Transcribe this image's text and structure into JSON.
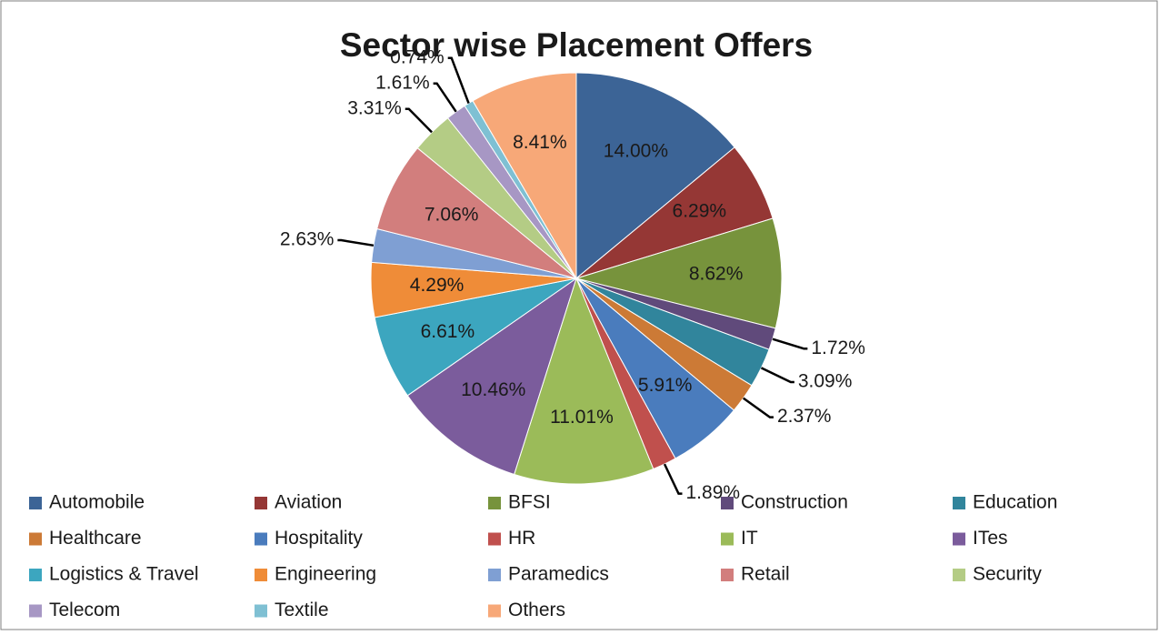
{
  "chart_data": {
    "type": "pie",
    "title": "Sector wise Placement Offers",
    "categories": [
      "Automobile",
      "Aviation",
      "BFSI",
      "Construction",
      "Education",
      "Healthcare",
      "Hospitality",
      "HR",
      "IT",
      "ITes",
      "Logistics & Travel",
      "Engineering",
      "Paramedics",
      "Retail",
      "Security",
      "Telecom",
      "Textile",
      "Others"
    ],
    "values": [
      14.0,
      6.29,
      8.62,
      1.72,
      3.09,
      2.37,
      5.91,
      1.89,
      11.01,
      10.46,
      6.61,
      4.29,
      2.63,
      7.06,
      3.31,
      1.61,
      0.74,
      8.41
    ],
    "value_labels": [
      "14.00%",
      "6.29%",
      "8.62%",
      "1.72%",
      "3.09%",
      "2.37%",
      "5.91%",
      "1.89%",
      "11.01%",
      "10.46%",
      "6.61%",
      "4.29%",
      "2.63%",
      "7.06%",
      "3.31%",
      "1.61%",
      "0.74%",
      "8.41%"
    ],
    "colors": [
      "#3c6496",
      "#953735",
      "#77933c",
      "#604a7b",
      "#31859c",
      "#cc7a36",
      "#4a7cbd",
      "#c0504d",
      "#9bbb59",
      "#7b5c9c",
      "#3ca6bf",
      "#ef8c38",
      "#7f9fd3",
      "#d27e7d",
      "#b4cc85",
      "#a797c4",
      "#7fc0d3",
      "#f7a878"
    ],
    "legend": "bottom"
  }
}
